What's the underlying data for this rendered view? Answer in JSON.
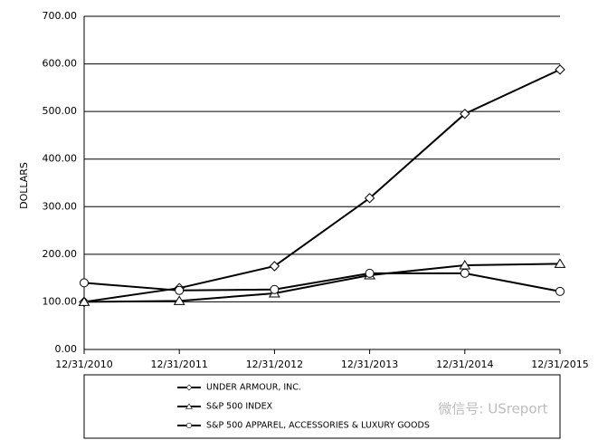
{
  "chart_data": {
    "type": "line",
    "y_label": "DOLLARS",
    "categories": [
      "12/31/2010",
      "12/31/2011",
      "12/31/2012",
      "12/31/2013",
      "12/31/2014",
      "12/31/2015"
    ],
    "series": [
      {
        "name": "UNDER ARMOUR, INC.",
        "color": "#000000",
        "marker": "diamond",
        "values": [
          100,
          129,
          175,
          318,
          495,
          588
        ]
      },
      {
        "name": "S&P 500 INDEX",
        "color": "#000000",
        "marker": "triangle",
        "values": [
          100,
          102,
          118,
          156,
          177,
          180
        ]
      },
      {
        "name": "S&P 500 APPAREL, ACCESSORIES & LUXURY GOODS",
        "color": "#000000",
        "marker": "circle",
        "values": [
          140,
          124,
          126,
          160,
          160,
          122
        ]
      }
    ],
    "ylim": [
      0,
      700
    ],
    "yticks": [
      {
        "value": 0,
        "label": "0.00"
      },
      {
        "value": 100,
        "label": "100.00"
      },
      {
        "value": 200,
        "label": "200.00"
      },
      {
        "value": 300,
        "label": "300.00"
      },
      {
        "value": 400,
        "label": "400.00"
      },
      {
        "value": 500,
        "label": "500.00"
      },
      {
        "value": 600,
        "label": "600.00"
      },
      {
        "value": 700,
        "label": "700.00"
      }
    ],
    "grid": true,
    "watermark": "微信号: USreport"
  }
}
